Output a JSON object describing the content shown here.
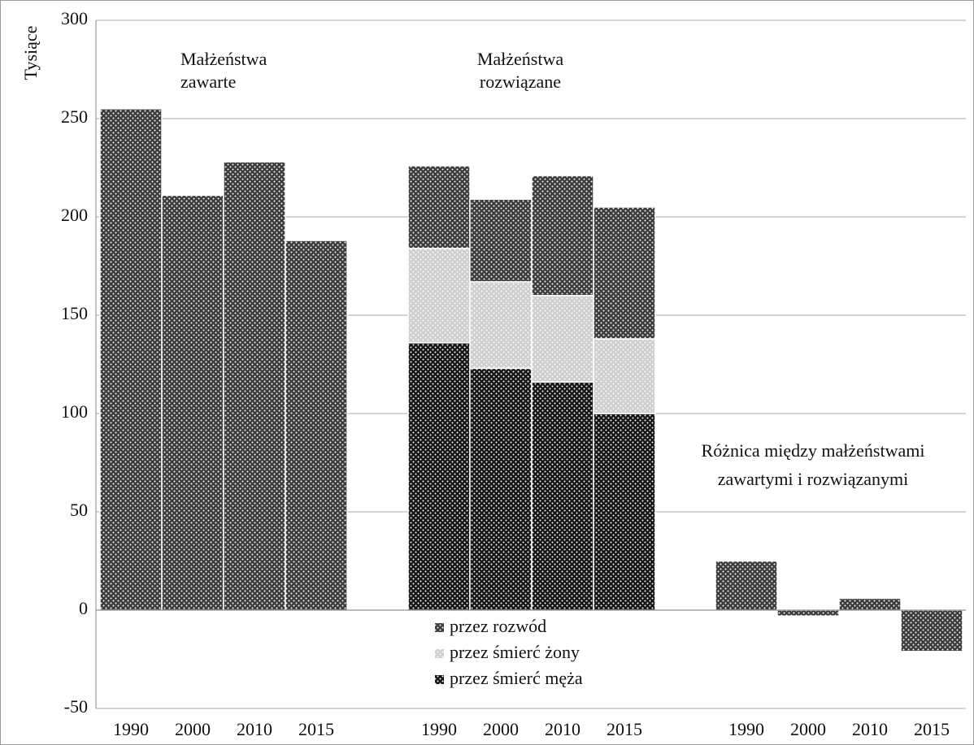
{
  "chart_data": {
    "type": "bar",
    "ylabel": "Tysiące",
    "ylim": [
      -50,
      300
    ],
    "yticks": [
      -50,
      0,
      50,
      100,
      150,
      200,
      250,
      300
    ],
    "grid": true,
    "groups": [
      {
        "label": [
          "Małżeństwa",
          "zawarte"
        ],
        "categories": [
          "1990",
          "2000",
          "2010",
          "2015"
        ],
        "series": [
          {
            "color": "#3c3c3c",
            "values": [
              255,
              211,
              228,
              188
            ]
          }
        ]
      },
      {
        "label": [
          "Małżeństwa",
          "rozwiązane"
        ],
        "categories": [
          "1990",
          "2000",
          "2010",
          "2015"
        ],
        "series": [
          {
            "name": "przez śmierć męża",
            "color": "#161616",
            "values": [
              136,
              123,
              116,
              100
            ]
          },
          {
            "name": "przez śmierć żony",
            "color": "#cfcfcf",
            "values": [
              48,
              44,
              44,
              38
            ]
          },
          {
            "name": "przez rozwód",
            "color": "#3c3c3c",
            "values": [
              42,
              42,
              61,
              67
            ]
          }
        ]
      },
      {
        "label": [
          "Różnica między małżeństwami",
          "zawartymi  i rozwiązanymi"
        ],
        "categories": [
          "1990",
          "2000",
          "2010",
          "2015"
        ],
        "series": [
          {
            "color": "#3c3c3c",
            "values": [
              25,
              -3,
              6,
              -21
            ]
          }
        ]
      }
    ]
  }
}
